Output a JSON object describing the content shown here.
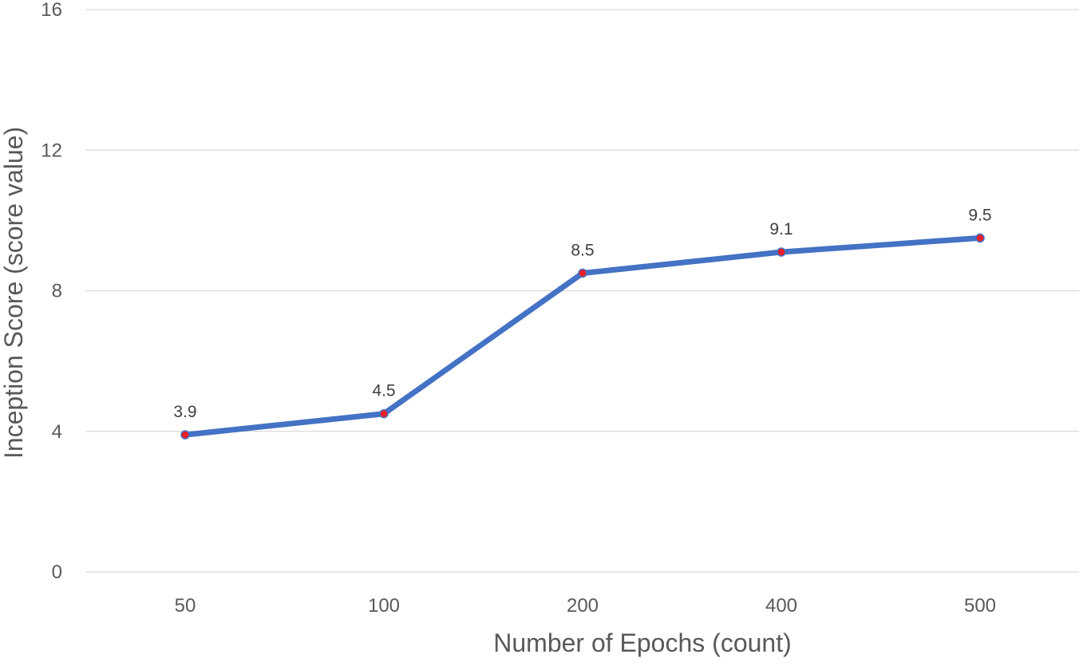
{
  "chart_data": {
    "type": "line",
    "categories": [
      "50",
      "100",
      "200",
      "400",
      "500"
    ],
    "series": [
      {
        "values": [
          3.9,
          4.5,
          8.5,
          9.1,
          9.5
        ],
        "data_labels": [
          "3.9",
          "4.5",
          "8.5",
          "9.1",
          "9.5"
        ]
      }
    ],
    "title": "",
    "xlabel": "Number of Epochs (count)",
    "ylabel": "Inception Score (score value)",
    "ylim": [
      0,
      16
    ],
    "yticks": [
      0,
      4,
      8,
      12,
      16
    ],
    "ytick_labels": [
      "0",
      "4",
      "8",
      "12",
      "16"
    ],
    "grid": true,
    "legend": "none",
    "colors": {
      "line": "#4472c4",
      "marker_fill": "#e8202a",
      "marker_edge": "#4472c4",
      "gridline": "#d9d9d9",
      "text": "#595959"
    }
  }
}
